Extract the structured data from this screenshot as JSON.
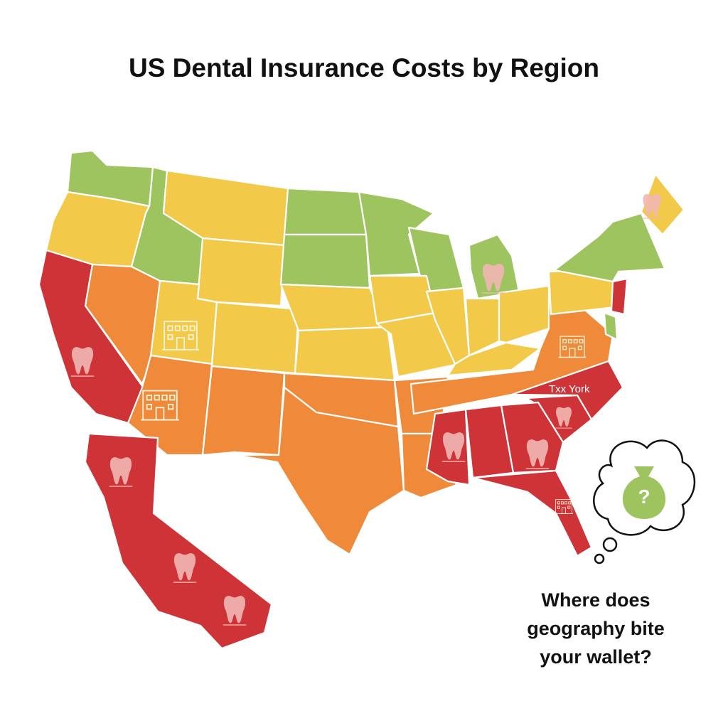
{
  "header": {
    "title": "US Dental Insurance Costs by Region"
  },
  "map": {
    "region_label": "Txx York",
    "icon_label": "?"
  },
  "caption": {
    "lines": [
      "Where does",
      "geography bite",
      "your wallet?"
    ]
  }
}
